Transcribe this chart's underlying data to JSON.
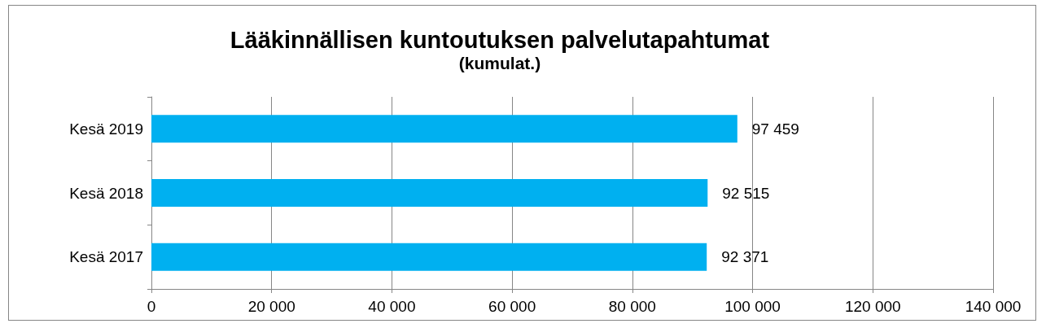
{
  "chart_data": {
    "type": "bar",
    "orientation": "horizontal",
    "title": "Lääkinnällisen kuntoutuksen palvelutapahtumat",
    "subtitle": "(kumulat.)",
    "categories": [
      "Kesä 2019",
      "Kesä 2018",
      "Kesä 2017"
    ],
    "values": [
      97459,
      92515,
      92371
    ],
    "value_labels": [
      "97 459",
      "92 515",
      "92 371"
    ],
    "color": "#00b0f0",
    "xlim": [
      0,
      140000
    ],
    "xticks": [
      0,
      {
        "value": 20000,
        "label": "20 000"
      },
      {
        "value": 40000,
        "label": "40 000"
      },
      {
        "value": 60000,
        "label": "60 000"
      },
      {
        "value": 80000,
        "label": "80 000"
      },
      {
        "value": 100000,
        "label": "100 000"
      },
      {
        "value": 120000,
        "label": "120 000"
      },
      {
        "value": 140000,
        "label": "140 000"
      }
    ],
    "grid": "x"
  }
}
